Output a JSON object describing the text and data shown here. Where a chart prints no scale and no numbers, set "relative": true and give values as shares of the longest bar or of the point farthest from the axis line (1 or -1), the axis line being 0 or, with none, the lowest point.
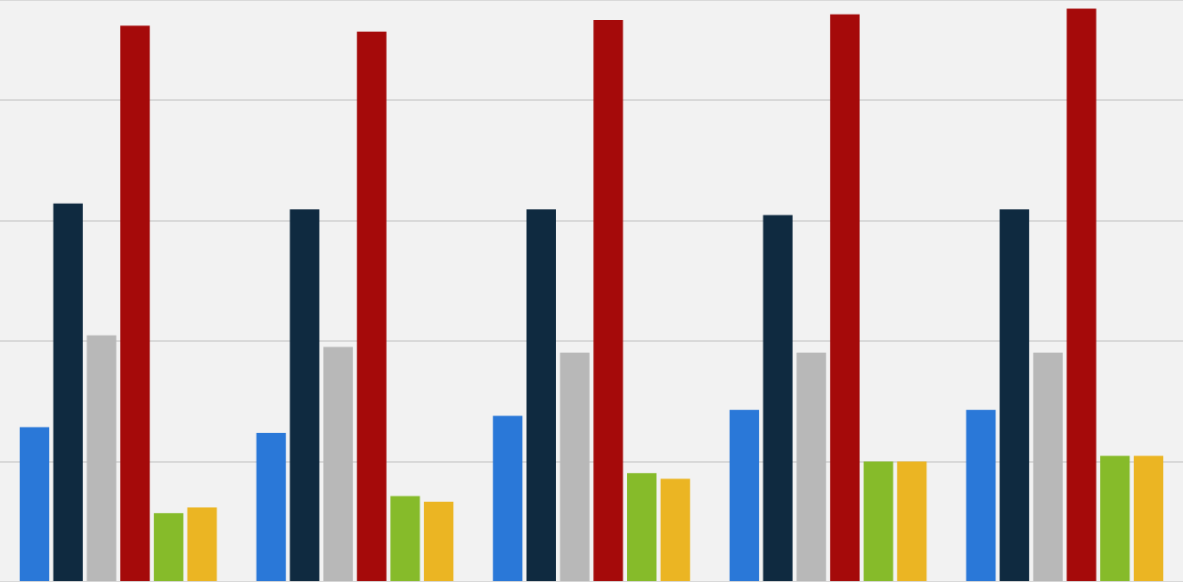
{
  "chart_data": {
    "type": "bar",
    "relative": true,
    "grid": "y",
    "categories": [
      null,
      null,
      null,
      null,
      null
    ],
    "series": [
      {
        "color": "#2a78d8",
        "values": [
          0.27,
          0.26,
          0.29,
          0.3,
          0.3
        ]
      },
      {
        "color": "#0f2a40",
        "values": [
          0.66,
          0.65,
          0.65,
          0.64,
          0.65
        ]
      },
      {
        "color": "#b8b8b8",
        "values": [
          0.43,
          0.41,
          0.4,
          0.4,
          0.4
        ]
      },
      {
        "color": "#a50a0a",
        "values": [
          0.97,
          0.96,
          0.98,
          0.99,
          1
        ]
      },
      {
        "color": "#86bb2a",
        "values": [
          0.12,
          0.15,
          0.19,
          0.21,
          0.22
        ]
      },
      {
        "color": "#ebb523",
        "values": [
          0.13,
          0.14,
          0.18,
          0.21,
          0.22
        ]
      }
    ]
  }
}
